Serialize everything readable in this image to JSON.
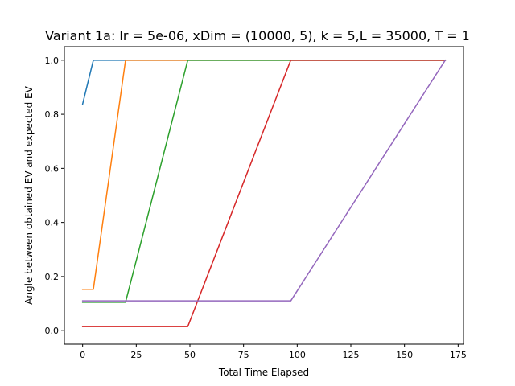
{
  "chart_data": {
    "type": "line",
    "title": "Variant 1a: lr = 5e-06, xDim = (10000, 5), k = 5,L = 35000, T = 1",
    "xlabel": "Total Time Elapsed",
    "ylabel": "Angle between obtained EV and expected EV",
    "xlim": [
      -8.5,
      177.5
    ],
    "ylim": [
      -0.05,
      1.05
    ],
    "xticks": [
      0,
      25,
      50,
      75,
      100,
      125,
      150,
      175
    ],
    "yticks": [
      0.0,
      0.2,
      0.4,
      0.6,
      0.8,
      1.0
    ],
    "xtick_labels": [
      "0",
      "25",
      "50",
      "75",
      "100",
      "125",
      "150",
      "175"
    ],
    "ytick_labels": [
      "0.0",
      "0.2",
      "0.4",
      "0.6",
      "0.8",
      "1.0"
    ],
    "grid": false,
    "series": [
      {
        "color": "#1f77b4",
        "x": [
          0,
          5,
          169
        ],
        "y": [
          0.838,
          1.0,
          1.0
        ]
      },
      {
        "color": "#ff7f0e",
        "x": [
          0,
          5,
          20,
          169
        ],
        "y": [
          0.153,
          0.153,
          1.0,
          1.0
        ]
      },
      {
        "color": "#2ca02c",
        "x": [
          0,
          20,
          49,
          169
        ],
        "y": [
          0.105,
          0.105,
          1.0,
          1.0
        ]
      },
      {
        "color": "#d62728",
        "x": [
          0,
          49,
          97,
          169
        ],
        "y": [
          0.015,
          0.015,
          1.0,
          1.0
        ]
      },
      {
        "color": "#9467bd",
        "x": [
          0,
          97,
          169
        ],
        "y": [
          0.11,
          0.11,
          1.0
        ]
      }
    ]
  }
}
